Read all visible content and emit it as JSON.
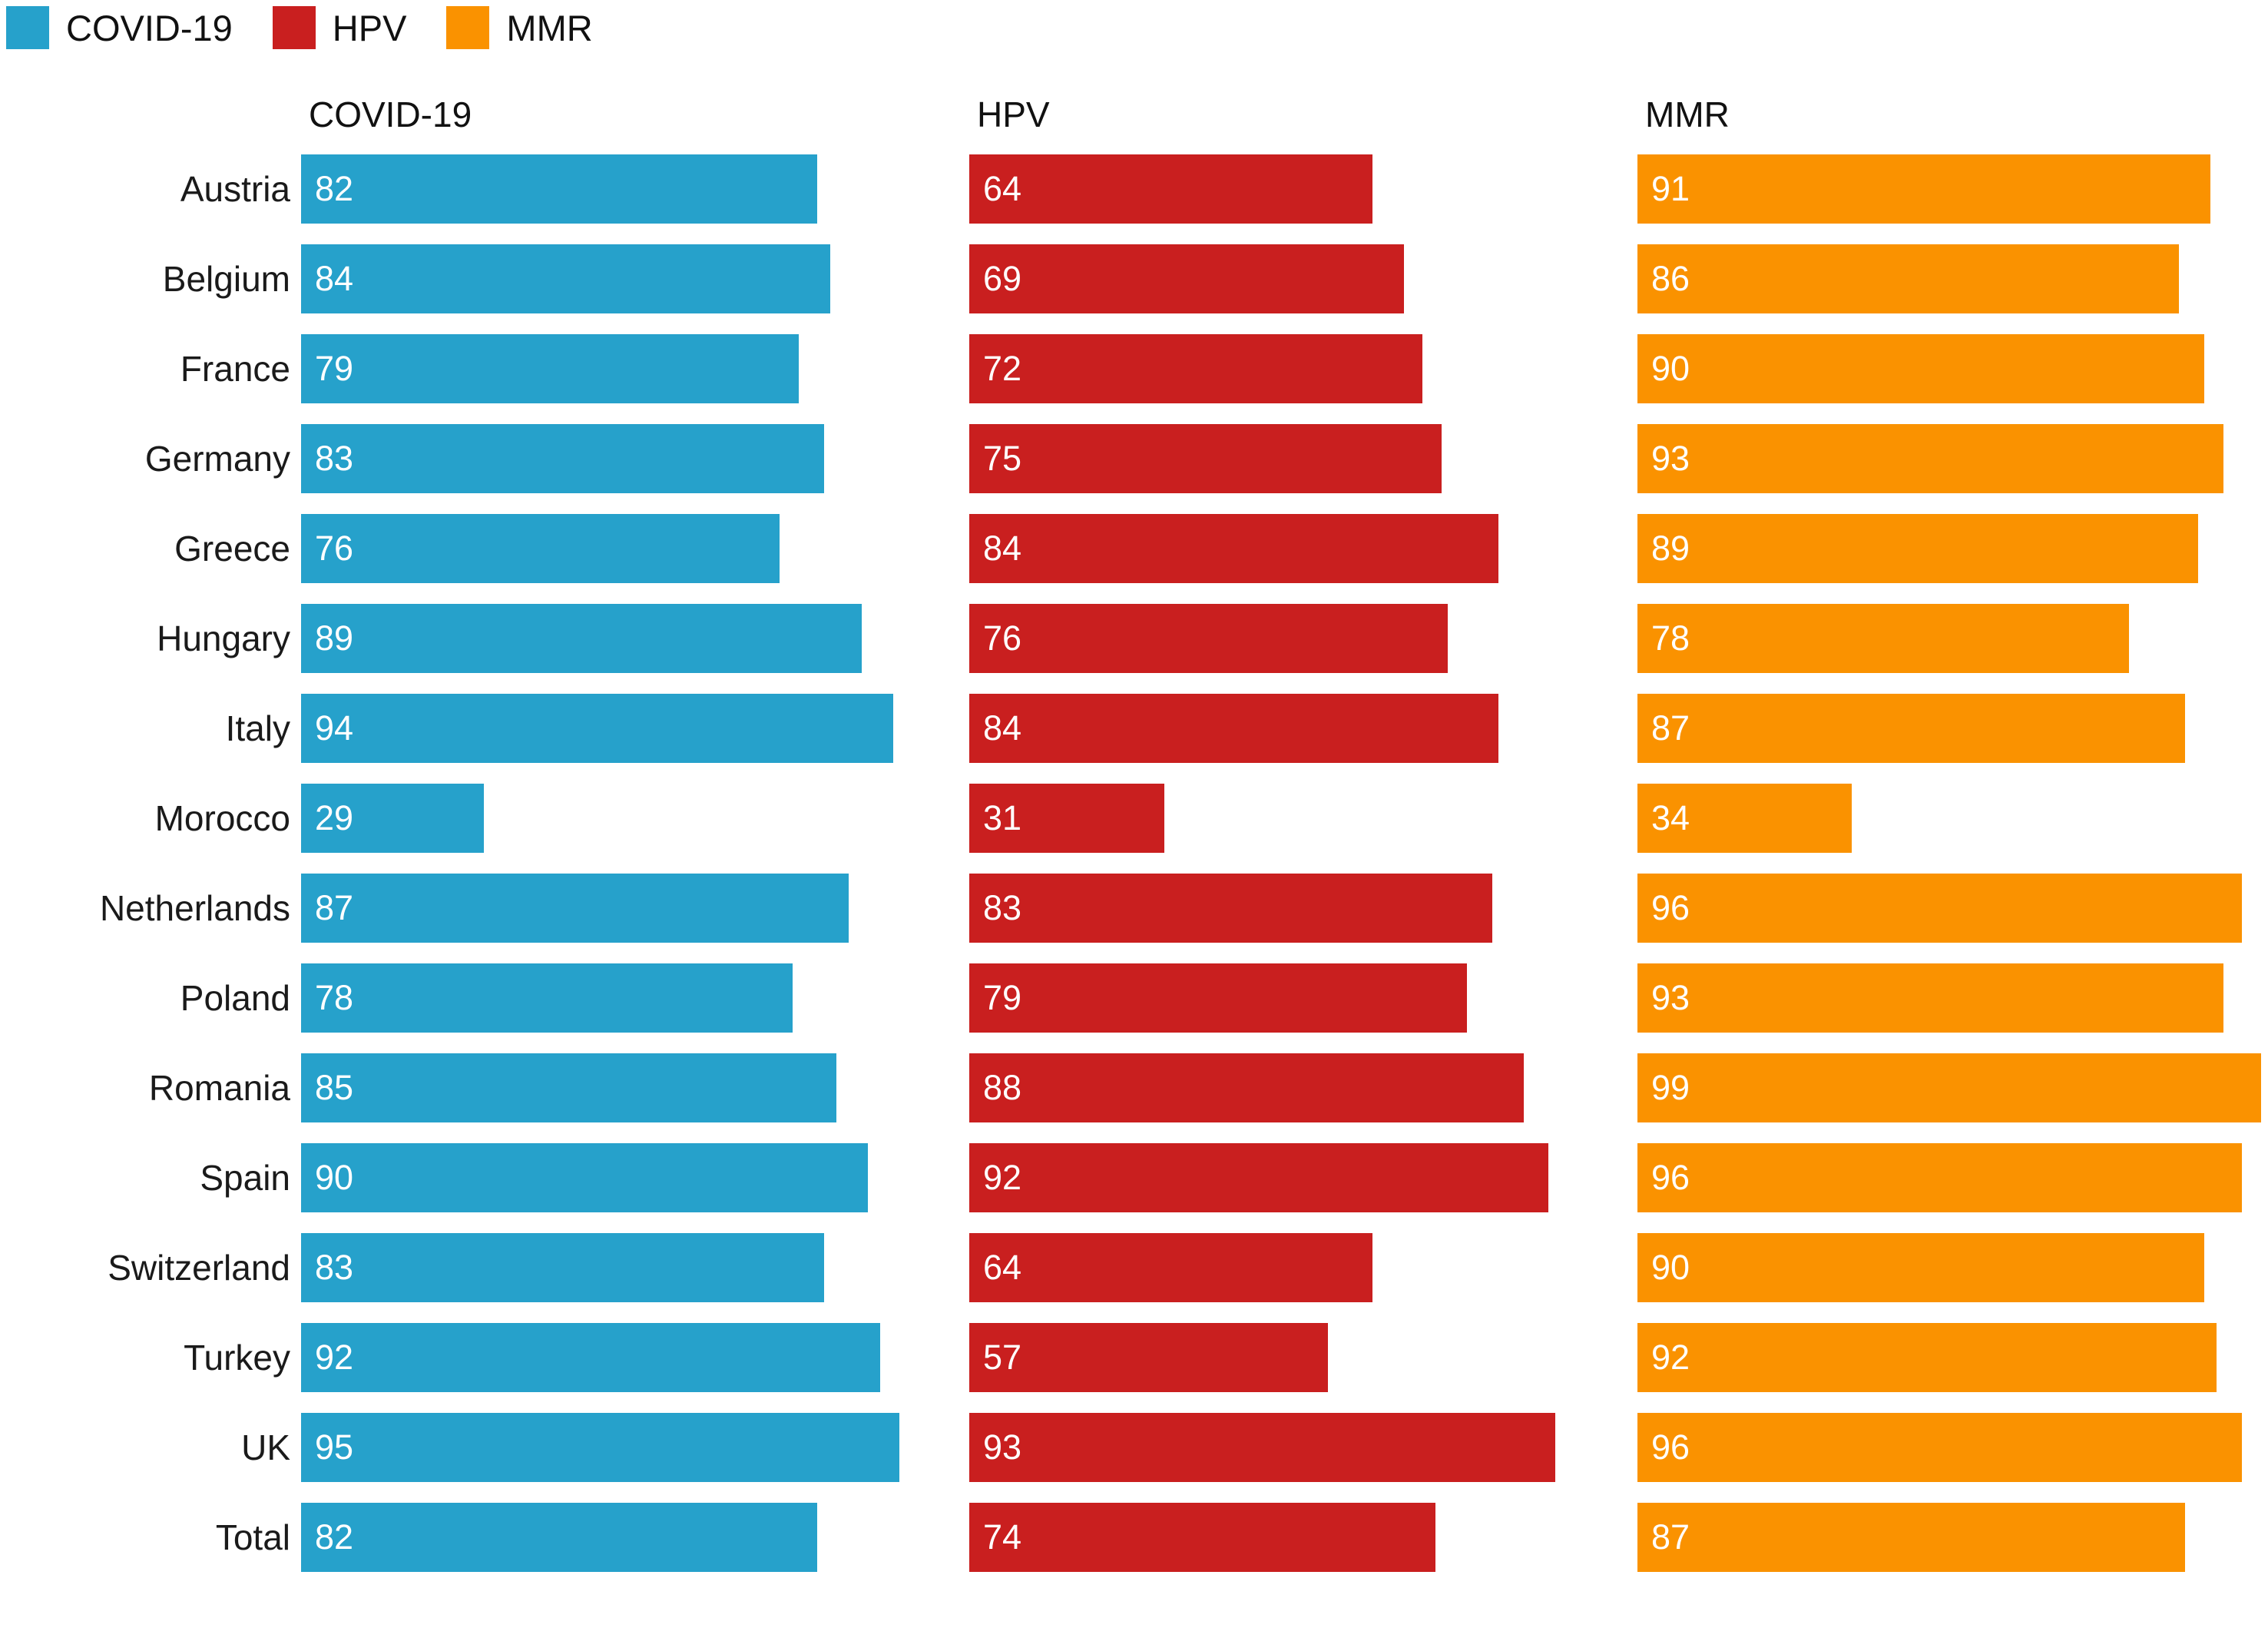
{
  "legend": {
    "items": [
      {
        "label": "COVID-19",
        "color": "#26A1CB"
      },
      {
        "label": "HPV",
        "color": "#C91F1F"
      },
      {
        "label": "MMR",
        "color": "#FA9200"
      }
    ]
  },
  "chart_data": {
    "type": "bar",
    "orientation": "horizontal",
    "title": "",
    "panel_headers": [
      "COVID-19",
      "HPV",
      "MMR"
    ],
    "categories": [
      "Austria",
      "Belgium",
      "France",
      "Germany",
      "Greece",
      "Hungary",
      "Italy",
      "Morocco",
      "Netherlands",
      "Poland",
      "Romania",
      "Spain",
      "Switzerland",
      "Turkey",
      "UK",
      "Total"
    ],
    "series": [
      {
        "name": "COVID-19",
        "color": "#26A1CB",
        "values": [
          82,
          84,
          79,
          83,
          76,
          89,
          94,
          29,
          87,
          78,
          85,
          90,
          83,
          92,
          95,
          82
        ]
      },
      {
        "name": "HPV",
        "color": "#C91F1F",
        "values": [
          64,
          69,
          72,
          75,
          84,
          76,
          84,
          31,
          83,
          79,
          88,
          92,
          64,
          57,
          93,
          74
        ]
      },
      {
        "name": "MMR",
        "color": "#FA9200",
        "values": [
          91,
          86,
          90,
          93,
          89,
          78,
          87,
          34,
          96,
          93,
          99,
          96,
          90,
          92,
          96,
          87
        ]
      }
    ],
    "xlim": [
      0,
      100
    ],
    "value_labels": "inside-start",
    "grid": false,
    "axes_visible": false,
    "legend_position": "top-left"
  }
}
